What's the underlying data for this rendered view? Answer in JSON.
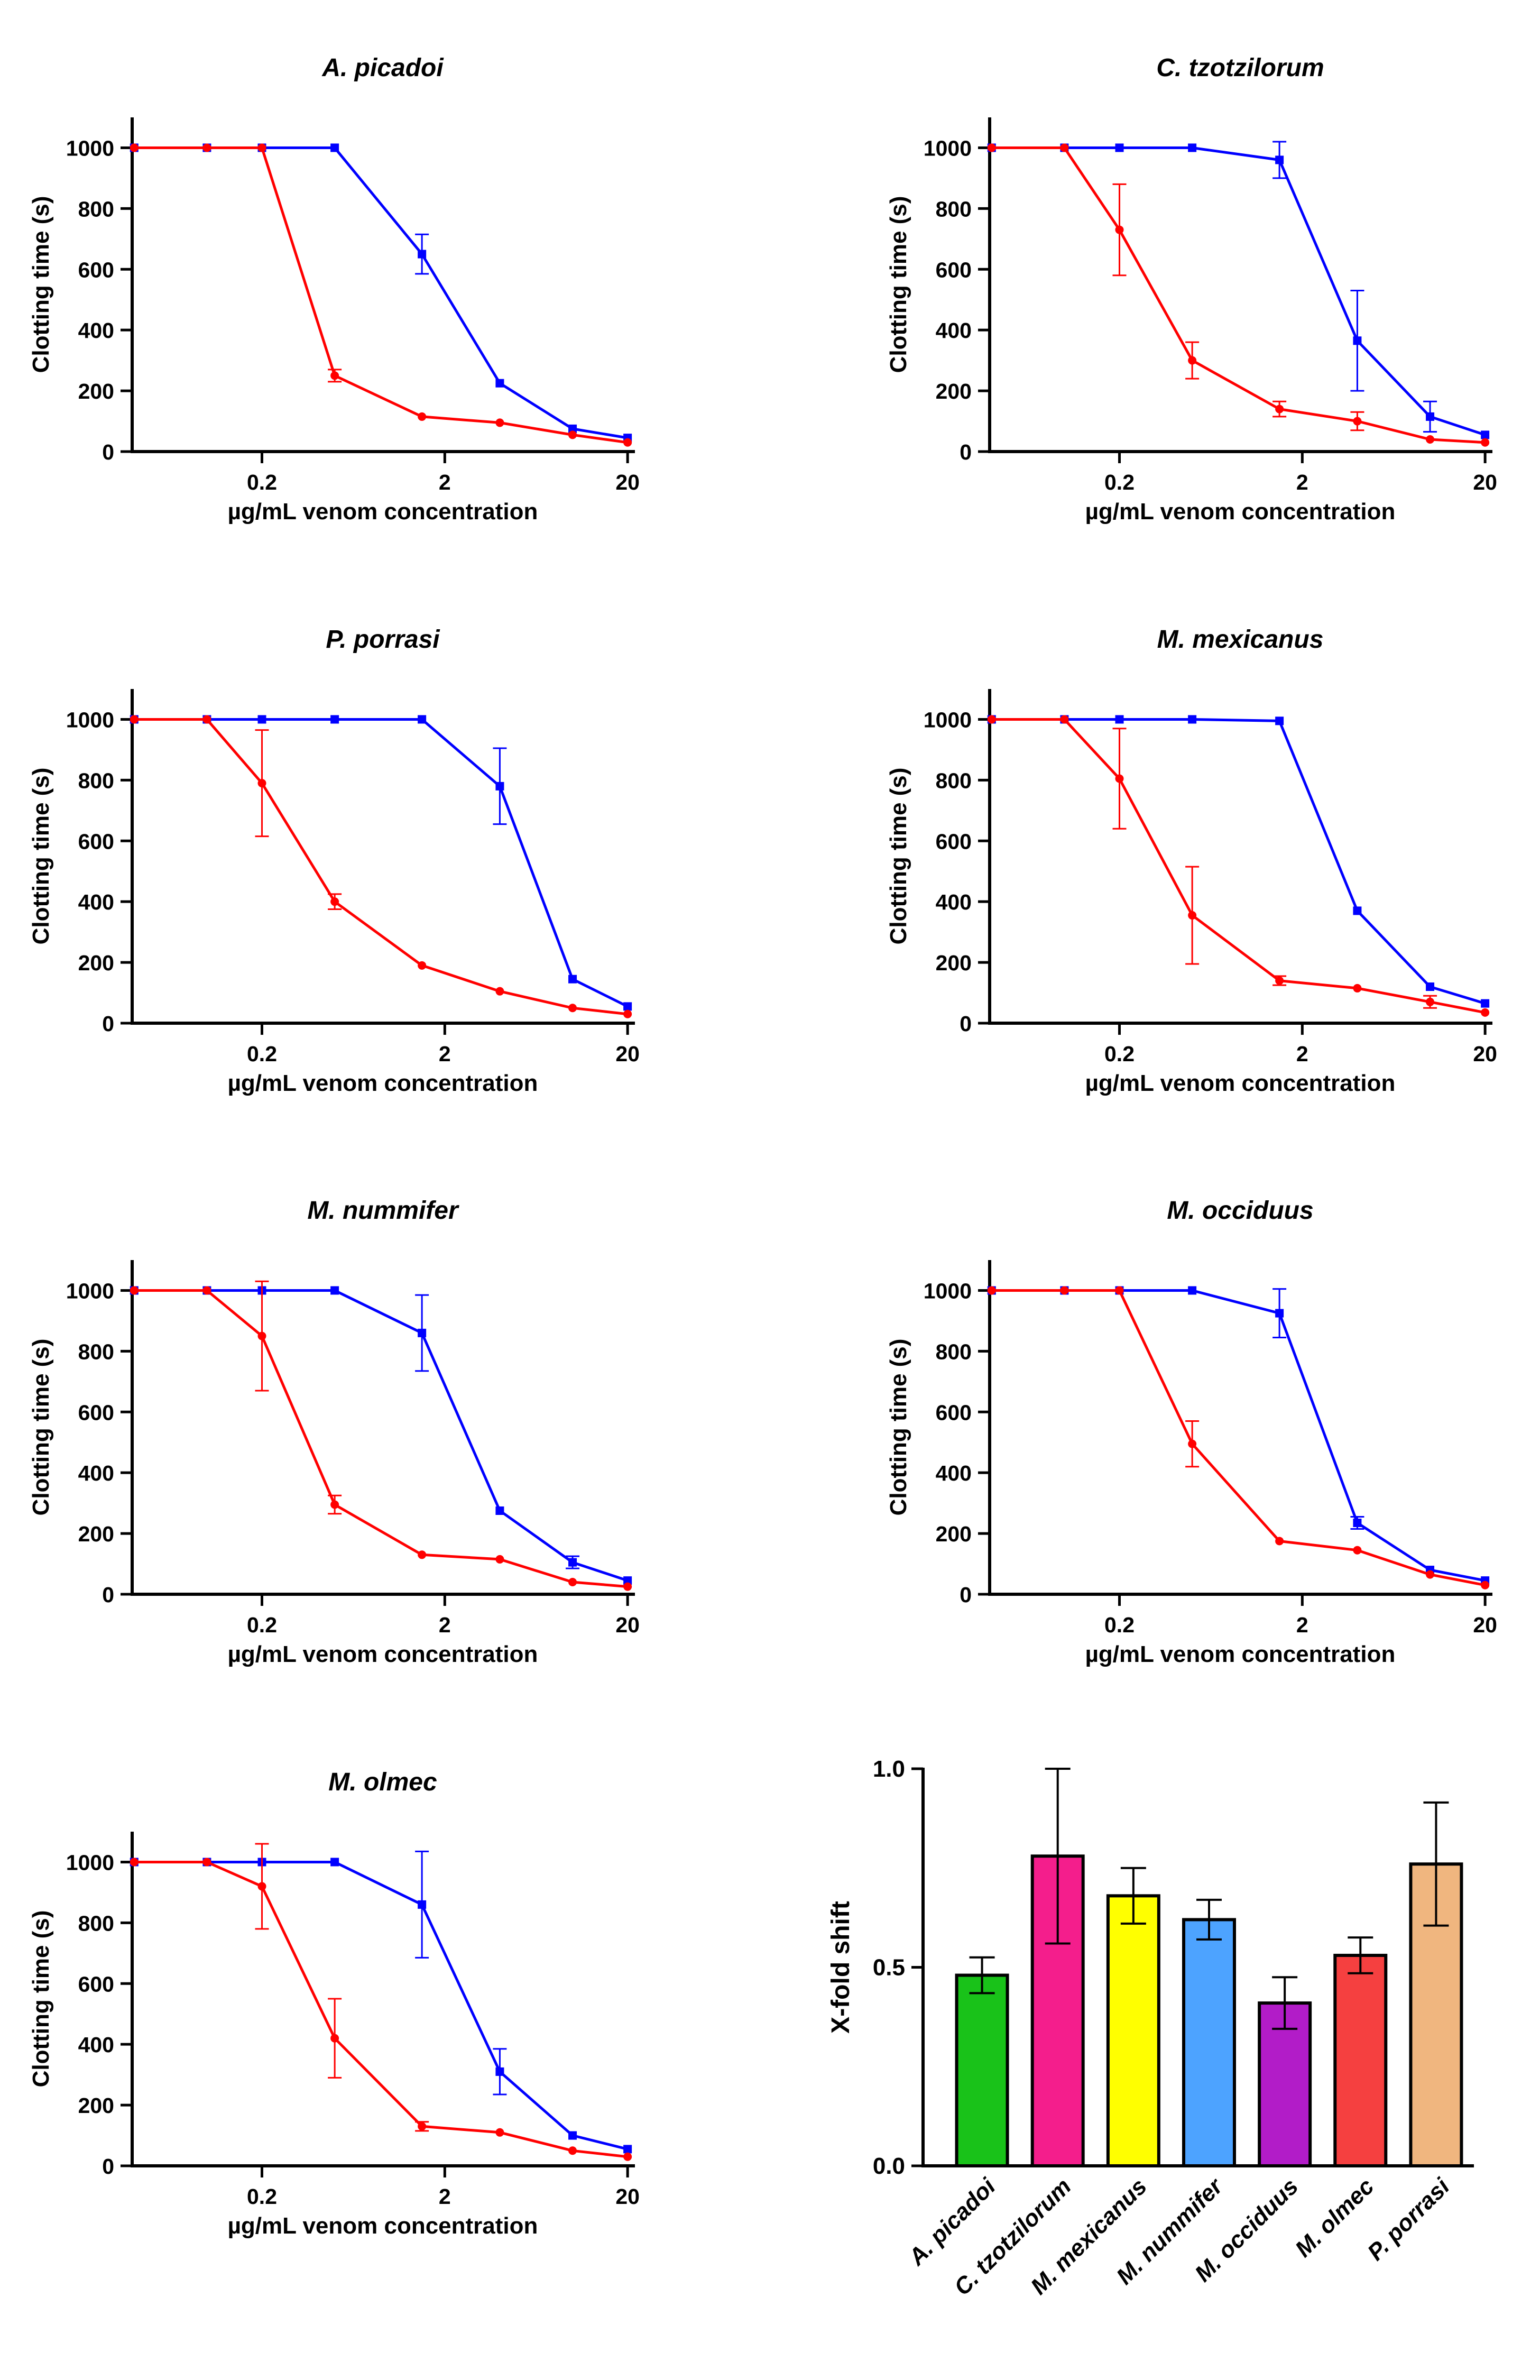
{
  "colors": {
    "blue": "#0000ff",
    "red": "#ff0000",
    "axis": "#000000"
  },
  "common": {
    "ylabel": "Clotting time (s)",
    "xlabel": "µg/mL venom concentration",
    "x_ticks": [
      0.2,
      2,
      20
    ],
    "x_tick_labels": [
      "0.2",
      "2",
      "20"
    ],
    "y_ticks": [
      0,
      200,
      400,
      600,
      800,
      1000
    ],
    "y_tick_labels": [
      "0",
      "200",
      "400",
      "600",
      "800",
      "1000"
    ],
    "ylim": [
      0,
      1100
    ],
    "xlim": [
      0.039,
      21.5
    ],
    "x_scale": "log"
  },
  "chart_data": [
    {
      "type": "line",
      "title": "A. picadoi",
      "xlabel": "µg/mL venom concentration",
      "ylabel": "Clotting time (s)",
      "series": [
        {
          "name": "blue",
          "color": "#0000ff",
          "x": [
            0.04,
            0.1,
            0.2,
            0.5,
            1.5,
            4,
            10,
            20
          ],
          "y": [
            1000,
            1000,
            1000,
            1000,
            650,
            225,
            75,
            45
          ],
          "err": [
            0,
            0,
            0,
            0,
            65,
            0,
            0,
            0
          ]
        },
        {
          "name": "red",
          "color": "#ff0000",
          "x": [
            0.04,
            0.1,
            0.2,
            0.5,
            1.5,
            4,
            10,
            20
          ],
          "y": [
            1000,
            1000,
            1000,
            250,
            115,
            95,
            55,
            30
          ],
          "err": [
            0,
            0,
            0,
            20,
            0,
            0,
            0,
            0
          ]
        }
      ]
    },
    {
      "type": "line",
      "title": "C. tzotzilorum",
      "xlabel": "µg/mL venom concentration",
      "ylabel": "Clotting time (s)",
      "series": [
        {
          "name": "blue",
          "color": "#0000ff",
          "x": [
            0.04,
            0.1,
            0.2,
            0.5,
            1.5,
            4,
            10,
            20
          ],
          "y": [
            1000,
            1000,
            1000,
            1000,
            960,
            365,
            115,
            55
          ],
          "err": [
            0,
            0,
            0,
            0,
            60,
            165,
            50,
            0
          ]
        },
        {
          "name": "red",
          "color": "#ff0000",
          "x": [
            0.04,
            0.1,
            0.2,
            0.5,
            1.5,
            4,
            10,
            20
          ],
          "y": [
            1000,
            1000,
            730,
            300,
            140,
            100,
            40,
            30
          ],
          "err": [
            0,
            0,
            150,
            60,
            25,
            30,
            0,
            0
          ]
        }
      ]
    },
    {
      "type": "line",
      "title": "P. porrasi",
      "xlabel": "µg/mL venom concentration",
      "ylabel": "Clotting time (s)",
      "series": [
        {
          "name": "blue",
          "color": "#0000ff",
          "x": [
            0.04,
            0.1,
            0.2,
            0.5,
            1.5,
            4,
            10,
            20
          ],
          "y": [
            1000,
            1000,
            1000,
            1000,
            1000,
            780,
            145,
            55
          ],
          "err": [
            0,
            0,
            0,
            0,
            0,
            125,
            0,
            0
          ]
        },
        {
          "name": "red",
          "color": "#ff0000",
          "x": [
            0.04,
            0.1,
            0.2,
            0.5,
            1.5,
            4,
            10,
            20
          ],
          "y": [
            1000,
            1000,
            790,
            400,
            190,
            105,
            50,
            30
          ],
          "err": [
            0,
            0,
            175,
            25,
            0,
            0,
            0,
            0
          ]
        }
      ]
    },
    {
      "type": "line",
      "title": "M. mexicanus",
      "xlabel": "µg/mL venom concentration",
      "ylabel": "Clotting time (s)",
      "series": [
        {
          "name": "blue",
          "color": "#0000ff",
          "x": [
            0.04,
            0.1,
            0.2,
            0.5,
            1.5,
            4,
            10,
            20
          ],
          "y": [
            1000,
            1000,
            1000,
            1000,
            995,
            370,
            120,
            65
          ],
          "err": [
            0,
            0,
            0,
            0,
            0,
            0,
            0,
            0
          ]
        },
        {
          "name": "red",
          "color": "#ff0000",
          "x": [
            0.04,
            0.1,
            0.2,
            0.5,
            1.5,
            4,
            10,
            20
          ],
          "y": [
            1000,
            1000,
            805,
            355,
            140,
            115,
            70,
            35
          ],
          "err": [
            0,
            0,
            165,
            160,
            15,
            0,
            20,
            0
          ]
        }
      ]
    },
    {
      "type": "line",
      "title": "M. nummifer",
      "xlabel": "µg/mL venom concentration",
      "ylabel": "Clotting time (s)",
      "series": [
        {
          "name": "blue",
          "color": "#0000ff",
          "x": [
            0.04,
            0.1,
            0.2,
            0.5,
            1.5,
            4,
            10,
            20
          ],
          "y": [
            1000,
            1000,
            1000,
            1000,
            860,
            275,
            105,
            45
          ],
          "err": [
            0,
            0,
            0,
            0,
            125,
            0,
            20,
            0
          ]
        },
        {
          "name": "red",
          "color": "#ff0000",
          "x": [
            0.04,
            0.1,
            0.2,
            0.5,
            1.5,
            4,
            10,
            20
          ],
          "y": [
            1000,
            1000,
            850,
            295,
            130,
            115,
            40,
            25
          ],
          "err": [
            0,
            0,
            180,
            30,
            0,
            0,
            0,
            0
          ]
        }
      ]
    },
    {
      "type": "line",
      "title": "M. occiduus",
      "xlabel": "µg/mL venom concentration",
      "ylabel": "Clotting time (s)",
      "series": [
        {
          "name": "blue",
          "color": "#0000ff",
          "x": [
            0.04,
            0.1,
            0.2,
            0.5,
            1.5,
            4,
            10,
            20
          ],
          "y": [
            1000,
            1000,
            1000,
            1000,
            925,
            235,
            80,
            45
          ],
          "err": [
            0,
            0,
            0,
            0,
            80,
            20,
            0,
            0
          ]
        },
        {
          "name": "red",
          "color": "#ff0000",
          "x": [
            0.04,
            0.1,
            0.2,
            0.5,
            1.5,
            4,
            10,
            20
          ],
          "y": [
            1000,
            1000,
            1000,
            495,
            175,
            145,
            65,
            30
          ],
          "err": [
            0,
            0,
            0,
            75,
            0,
            0,
            0,
            0
          ]
        }
      ]
    },
    {
      "type": "line",
      "title": "M. olmec",
      "xlabel": "µg/mL venom concentration",
      "ylabel": "Clotting time (s)",
      "series": [
        {
          "name": "blue",
          "color": "#0000ff",
          "x": [
            0.04,
            0.1,
            0.2,
            0.5,
            1.5,
            4,
            10,
            20
          ],
          "y": [
            1000,
            1000,
            1000,
            1000,
            860,
            310,
            100,
            55
          ],
          "err": [
            0,
            0,
            0,
            0,
            175,
            75,
            0,
            0
          ]
        },
        {
          "name": "red",
          "color": "#ff0000",
          "x": [
            0.04,
            0.1,
            0.2,
            0.5,
            1.5,
            4,
            10,
            20
          ],
          "y": [
            1000,
            1000,
            920,
            420,
            130,
            110,
            50,
            30
          ],
          "err": [
            0,
            0,
            140,
            130,
            15,
            0,
            0,
            0
          ]
        }
      ]
    },
    {
      "type": "bar",
      "title": "",
      "xlabel": "",
      "ylabel": "X-fold shift",
      "ylim": [
        0,
        1.0
      ],
      "y_ticks": [
        0.0,
        0.5,
        1.0
      ],
      "y_tick_labels": [
        "0.0",
        "0.5",
        "1.0"
      ],
      "categories": [
        "A. picadoi",
        "C. tzotzilorum",
        "M. mexicanus",
        "M. nummifer",
        "M. occiduus",
        "M. olmec",
        "P. porrasi"
      ],
      "values": [
        0.48,
        0.78,
        0.68,
        0.62,
        0.41,
        0.53,
        0.76
      ],
      "errors": [
        0.045,
        0.22,
        0.07,
        0.05,
        0.065,
        0.045,
        0.155
      ],
      "colors": [
        "#19c219",
        "#f41e8c",
        "#ffff00",
        "#4da3ff",
        "#b21cc8",
        "#f54040",
        "#f0b67f"
      ]
    }
  ]
}
